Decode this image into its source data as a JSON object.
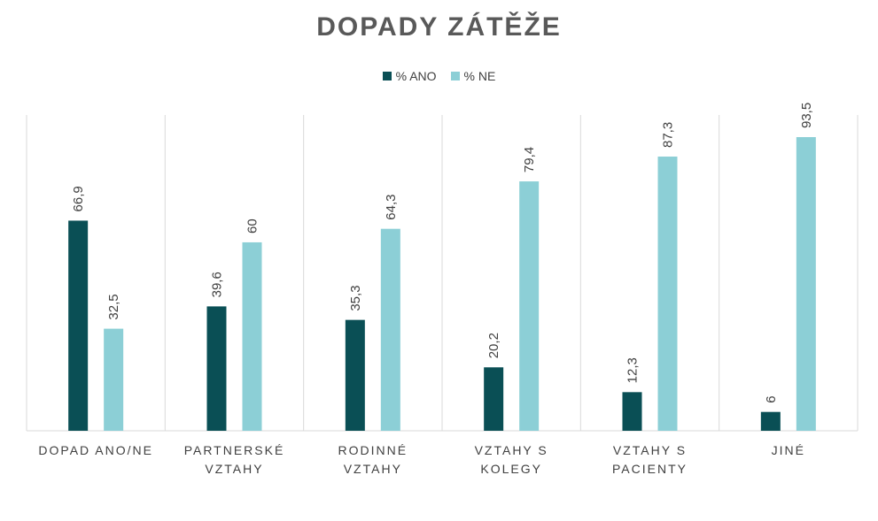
{
  "chart_data": {
    "type": "bar",
    "title": "DOPADY ZÁTĚŽE",
    "categories": [
      [
        "DOPAD ANO/NE"
      ],
      [
        "PARTNERSKÉ",
        "VZTAHY"
      ],
      [
        "RODINNÉ",
        "VZTAHY"
      ],
      [
        "VZTAHY S",
        "KOLEGY"
      ],
      [
        "VZTAHY S",
        "PACIENTY"
      ],
      [
        "JINÉ"
      ]
    ],
    "series": [
      {
        "name": "% ANO",
        "color": "#0a4f55",
        "values": [
          66.9,
          39.6,
          35.3,
          20.2,
          12.3,
          6
        ],
        "labels": [
          "66,9",
          "39,6",
          "35,3",
          "20,2",
          "12,3",
          "6"
        ]
      },
      {
        "name": "% NE",
        "color": "#8ccfd6",
        "values": [
          32.5,
          60,
          64.3,
          79.4,
          87.3,
          93.5
        ],
        "labels": [
          "32,5",
          "60",
          "64,3",
          "79,4",
          "87,3",
          "93,5"
        ]
      }
    ],
    "ylim": [
      0,
      100
    ],
    "legend_position": "top-center",
    "grid": false
  }
}
